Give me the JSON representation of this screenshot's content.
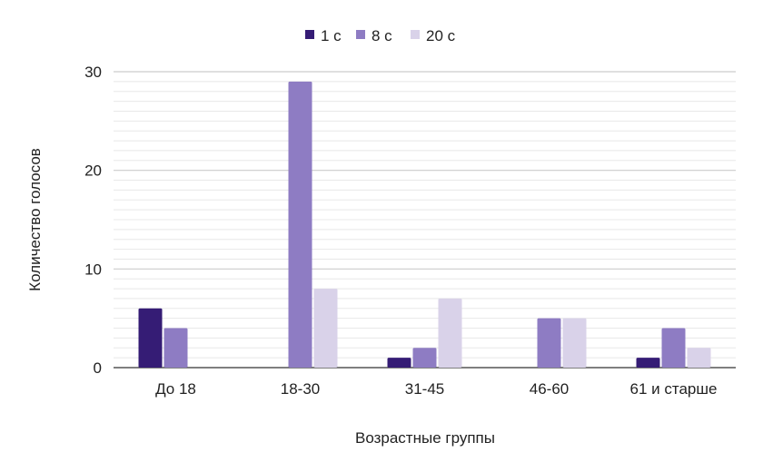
{
  "chart_data": {
    "type": "bar",
    "title": "",
    "xlabel": "Возрастные группы",
    "ylabel": "Количество голосов",
    "ylim": [
      0,
      30
    ],
    "yticks": [
      "0",
      "10",
      "20",
      "30"
    ],
    "grid": true,
    "legend_position": "top",
    "categories": [
      "До 18",
      "18-30",
      "31-45",
      "46-60",
      "61 и старше"
    ],
    "series": [
      {
        "name": "1 с",
        "color": "#351c75",
        "values": [
          6,
          0,
          1,
          0,
          1
        ]
      },
      {
        "name": "8 с",
        "color": "#8e7cc3",
        "values": [
          4,
          29,
          2,
          5,
          4
        ]
      },
      {
        "name": "20 с",
        "color": "#d9d2e9",
        "values": [
          0,
          8,
          7,
          5,
          2
        ]
      }
    ]
  }
}
